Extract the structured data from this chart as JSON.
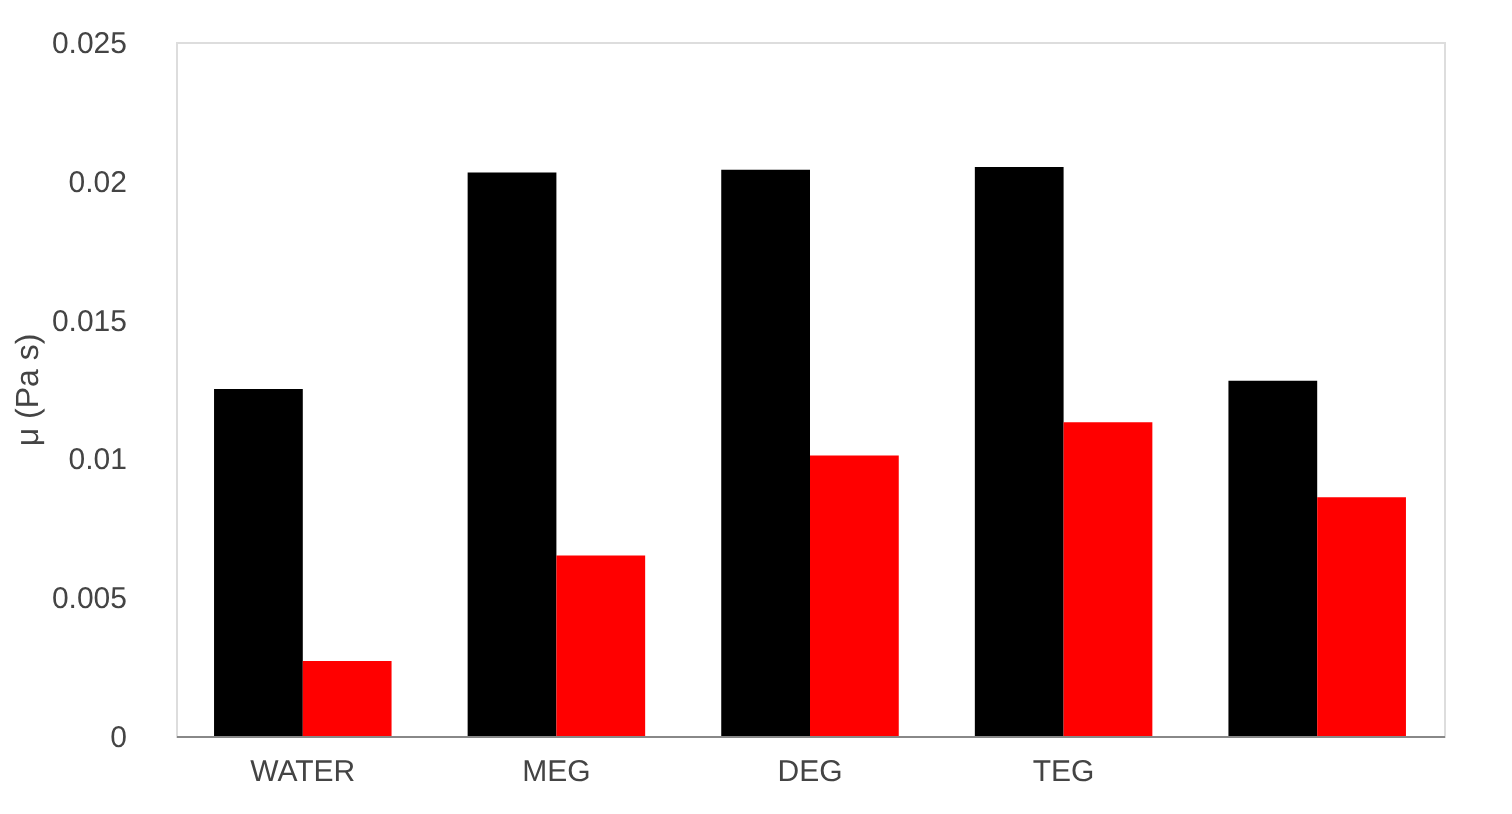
{
  "chart_data": {
    "type": "bar",
    "ylabel": "μ (Pa s)",
    "categories": [
      "WATER",
      "MEG",
      "DEG",
      "TEG",
      null
    ],
    "series": [
      {
        "color": "#000000",
        "values": [
          0.0125,
          0.0203,
          0.0204,
          0.0205,
          0.0128
        ]
      },
      {
        "color": "#ff0000",
        "values": [
          0.0027,
          0.0065,
          0.0101,
          0.0113,
          0.0086
        ]
      }
    ],
    "ylim": [
      0,
      0.025
    ],
    "yticks": [
      0,
      0.005,
      0.01,
      0.015,
      0.02,
      0.025
    ],
    "grid": false,
    "legend": false
  }
}
